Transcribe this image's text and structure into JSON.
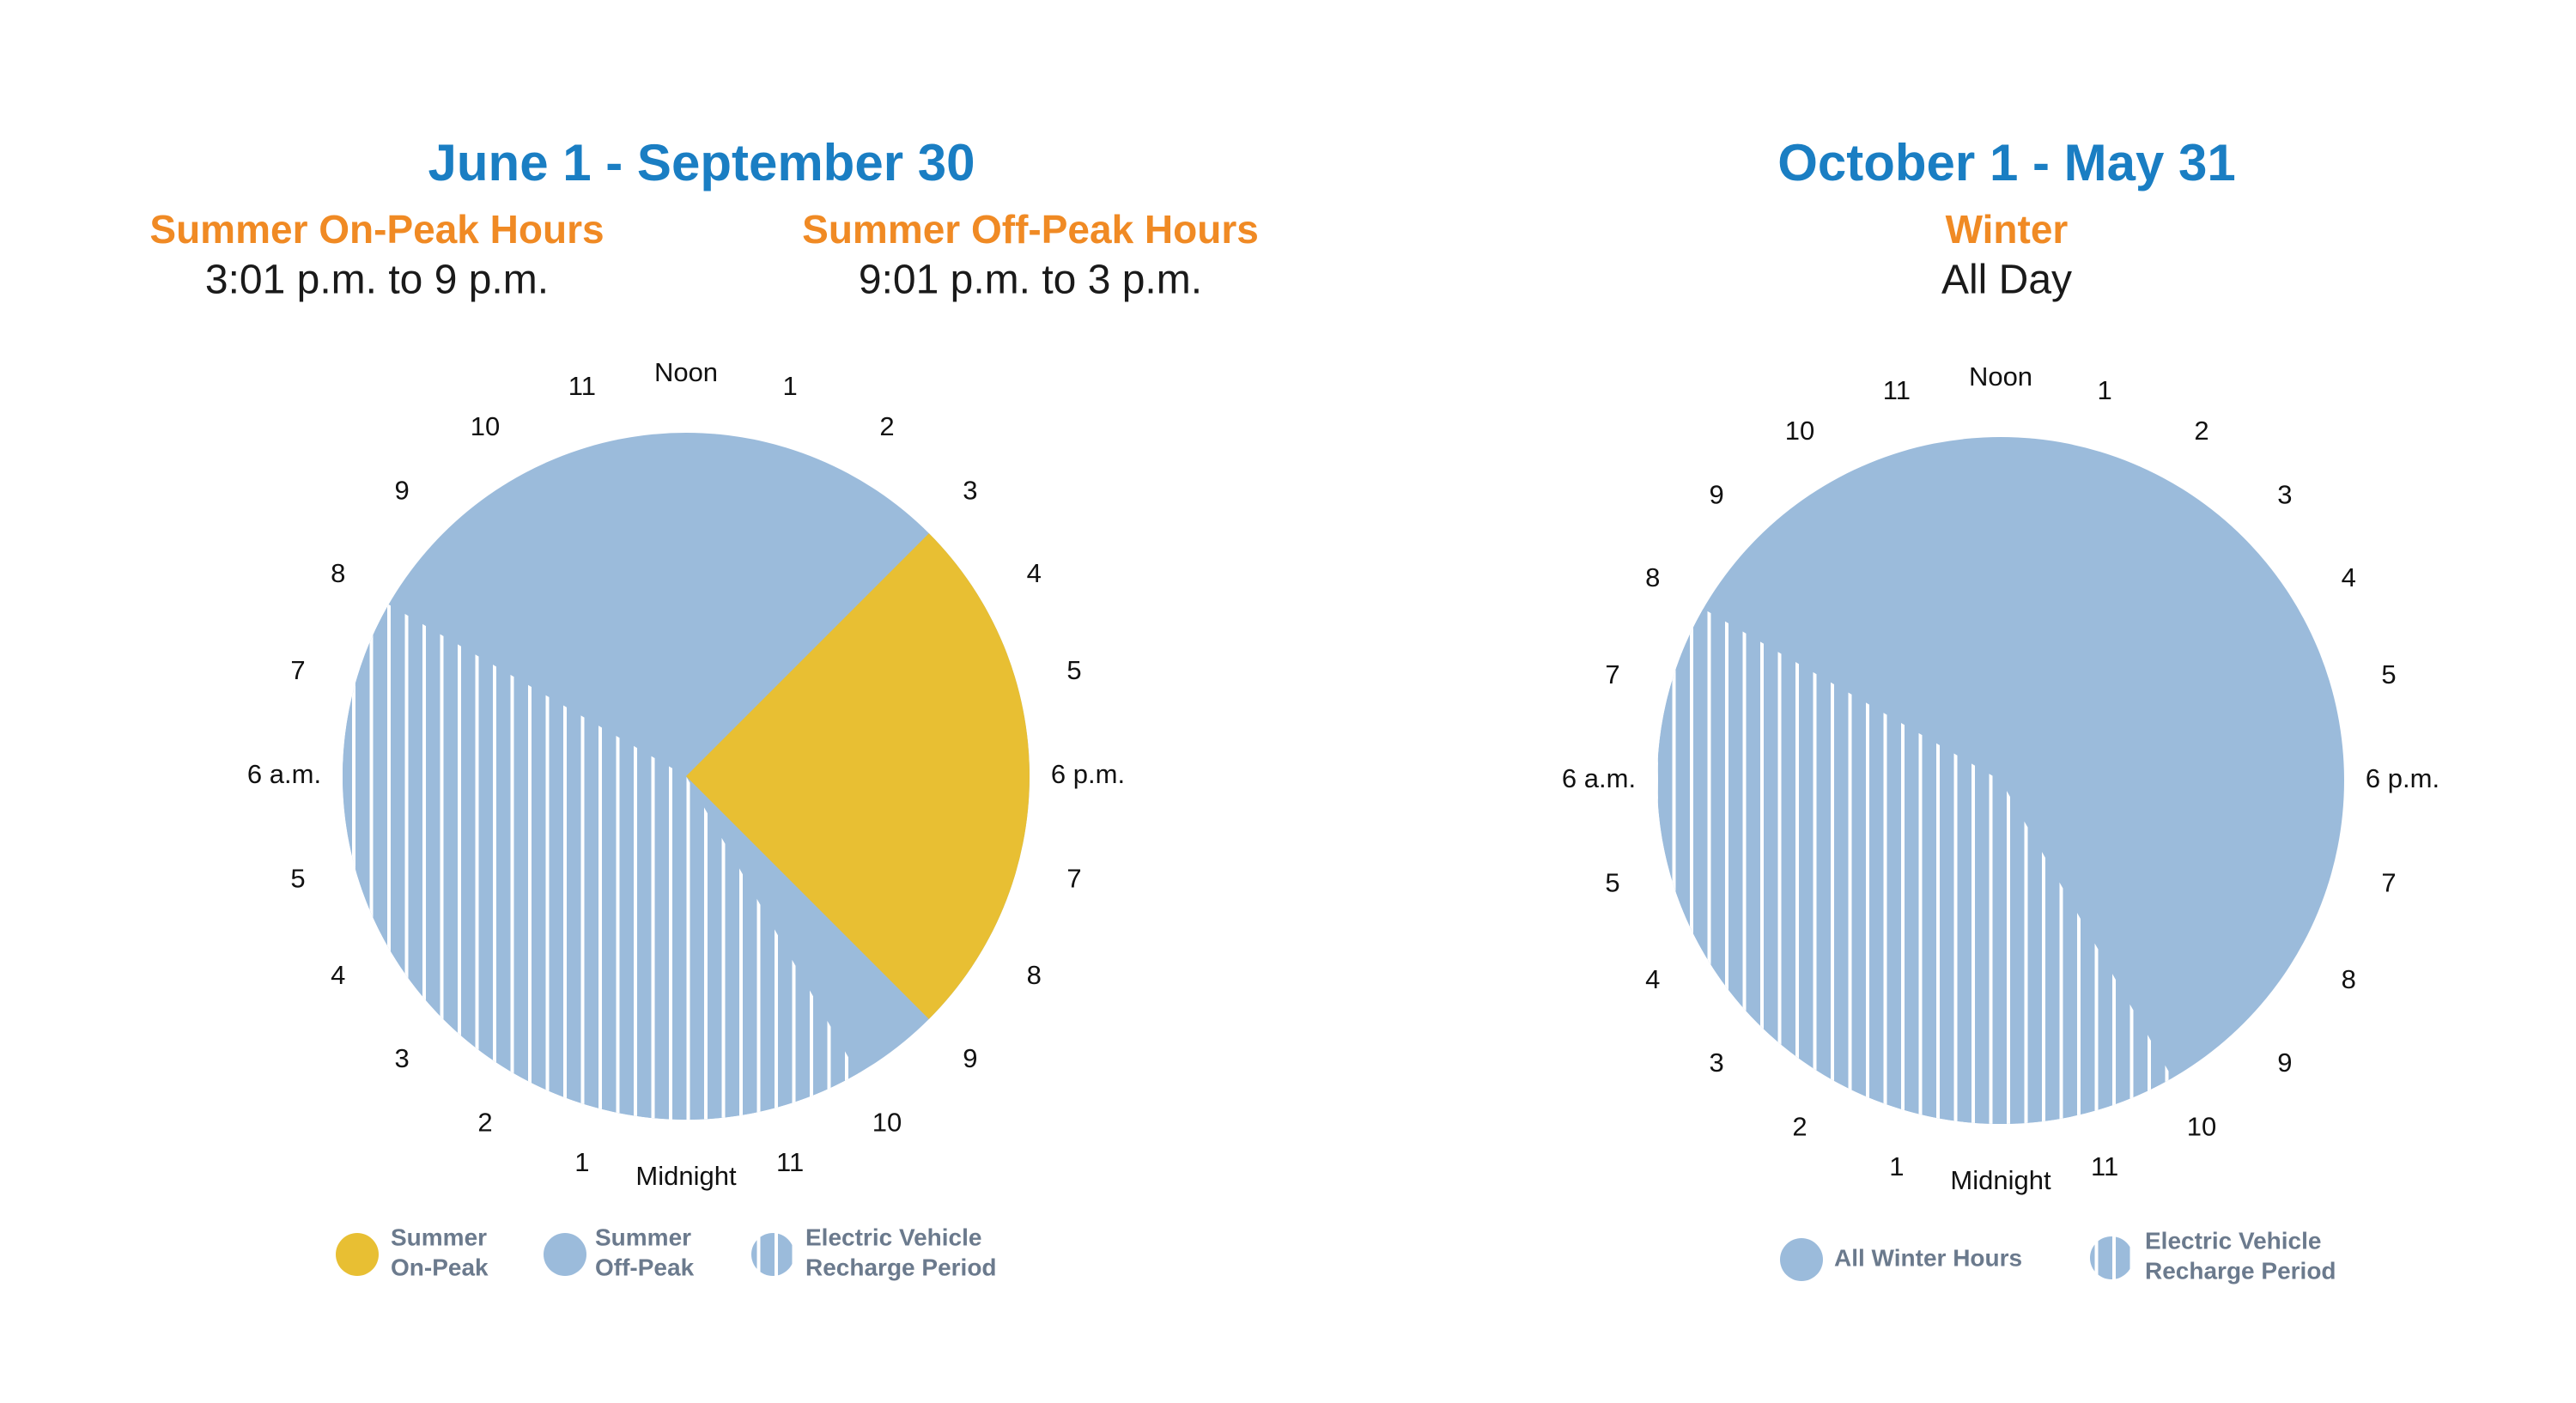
{
  "left": {
    "title": "June 1 - September 30",
    "on_peak": {
      "heading": "Summer On-Peak Hours",
      "hours": "3:01 p.m. to 9 p.m."
    },
    "off_peak": {
      "heading": "Summer Off-Peak Hours",
      "hours": "9:01 p.m. to 3 p.m."
    },
    "hour_labels": [
      "Noon",
      "1",
      "2",
      "3",
      "4",
      "5",
      "6 p.m.",
      "7",
      "8",
      "9",
      "10",
      "11",
      "Midnight",
      "1",
      "2",
      "3",
      "4",
      "5",
      "6 a.m.",
      "7",
      "8",
      "9",
      "10",
      "11"
    ],
    "legend": [
      {
        "lines": [
          "Summer",
          "On-Peak"
        ]
      },
      {
        "lines": [
          "Summer",
          "Off-Peak"
        ]
      },
      {
        "lines": [
          "Electric Vehicle",
          "Recharge Period"
        ]
      }
    ]
  },
  "right": {
    "title": "October 1 - May 31",
    "season": {
      "heading": "Winter",
      "hours": "All Day"
    },
    "hour_labels": [
      "Noon",
      "1",
      "2",
      "3",
      "4",
      "5",
      "6 p.m.",
      "7",
      "8",
      "9",
      "10",
      "11",
      "Midnight",
      "1",
      "2",
      "3",
      "4",
      "5",
      "6 a.m.",
      "7",
      "8",
      "9",
      "10",
      "11"
    ],
    "legend": [
      {
        "lines": [
          "All Winter Hours"
        ]
      },
      {
        "lines": [
          "Electric Vehicle",
          "Recharge Period"
        ]
      }
    ]
  }
}
